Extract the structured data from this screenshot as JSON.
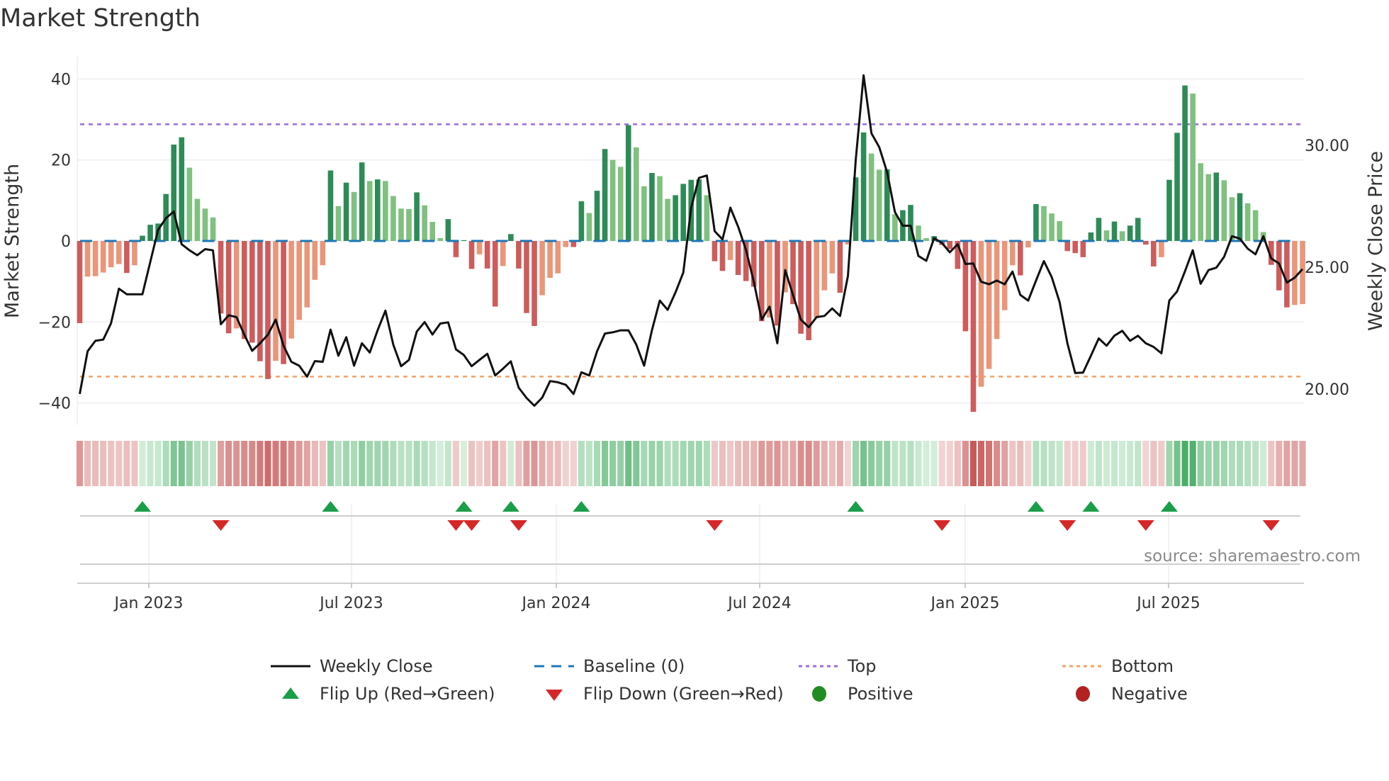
{
  "title": "Market Strength",
  "source": "source: sharemaestro.com",
  "legend": {
    "weekly_close": "Weekly Close",
    "baseline": "Baseline (0)",
    "top": "Top",
    "bottom": "Bottom",
    "flip_up": "Flip Up (Red→Green)",
    "flip_down": "Flip Down (Green→Red)",
    "positive": "Positive",
    "negative": "Negative"
  },
  "colors": {
    "pos_dark": "#2e8b57",
    "pos_light": "#80c080",
    "neg_dark": "#cd5c5c",
    "neg_light": "#e9967a",
    "baseline": "#1f77b4",
    "top": "#9b6fd6",
    "bottom": "#f0a468",
    "flip_up": "#1a9e4a",
    "flip_down": "#d62728",
    "positive": "#228b22",
    "negative": "#b22222",
    "close": "#111111"
  },
  "chart_data": {
    "type": "bar",
    "title": "Market Strength",
    "ylabel": "Market Strength",
    "ylabel_right": "Weekly Close Price",
    "ylim": [
      -45.5,
      45.5
    ],
    "ylim_right": [
      18.52,
      33.63
    ],
    "yticks": [
      "40",
      "20",
      "0",
      "−20",
      "−40"
    ],
    "yticks_values": [
      40,
      20,
      0,
      -20,
      -40
    ],
    "yticks_right": [
      "30.00",
      "25.00",
      "20.00"
    ],
    "yticks_right_values": [
      30,
      25,
      20
    ],
    "xticks": [
      "Jan 2023",
      "Jul 2023",
      "Jan 2024",
      "Jul 2024",
      "Jan 2025",
      "Jul 2025"
    ],
    "x_start": "2022-11-04",
    "x_frequency": "weekly",
    "top_level": 28.8,
    "bottom_level": -33.5,
    "baseline": 0,
    "strength": [
      -20.3,
      -8.8,
      -8.7,
      -7.8,
      -6.5,
      -5.7,
      -7.9,
      -6.0,
      1.3,
      4.0,
      4.3,
      11.6,
      23.8,
      25.6,
      18.1,
      10.4,
      8.0,
      5.8,
      -17.9,
      -22.8,
      -21.6,
      -24.2,
      -25.1,
      -29.7,
      -34.1,
      -29.6,
      -30.4,
      -24.1,
      -19.5,
      -16.4,
      -9.6,
      -6.0,
      17.4,
      8.6,
      14.4,
      12.1,
      19.4,
      14.8,
      15.2,
      14.8,
      11.1,
      8.0,
      7.9,
      12.0,
      8.8,
      4.7,
      0.7,
      5.4,
      -4.0,
      0.2,
      -6.9,
      -3.3,
      -6.8,
      -16.2,
      -6.2,
      1.7,
      -6.8,
      -17.8,
      -21.0,
      -13.4,
      -9.1,
      -8.0,
      -1.5,
      -1.5,
      9.8,
      6.9,
      12.4,
      22.7,
      20.0,
      18.3,
      28.6,
      23.1,
      13.5,
      16.8,
      16.0,
      10.4,
      11.3,
      14.1,
      15.1,
      15.2,
      11.3,
      -5.0,
      -7.4,
      -4.7,
      -8.4,
      -9.9,
      -11.3,
      -19.8,
      -18.9,
      -20.9,
      -12.7,
      -15.6,
      -22.9,
      -24.5,
      -18.9,
      -12.2,
      -8.0,
      -12.8,
      -0.9,
      15.7,
      26.8,
      21.6,
      17.6,
      17.7,
      6.6,
      7.6,
      8.9,
      3.8,
      0.7,
      1.2,
      -1.0,
      -2.0,
      -6.9,
      -22.3,
      -42.2,
      -36.0,
      -31.6,
      -24.2,
      -17.1,
      -6.0,
      -8.5,
      -1.6,
      9.1,
      8.6,
      6.8,
      4.9,
      -2.5,
      -3.0,
      -4.0,
      2.1,
      5.7,
      2.6,
      4.8,
      2.4,
      3.8,
      5.7,
      -0.9,
      -6.3,
      -4.0,
      15.1,
      26.7,
      38.4,
      36.4,
      19.2,
      16.5,
      16.9,
      15.0,
      10.8,
      11.8,
      9.3,
      7.6,
      2.2,
      -5.9,
      -12.2,
      -16.4,
      -15.8,
      -15.6
    ],
    "close": [
      19.8,
      21.55,
      21.98,
      22.03,
      22.7,
      24.12,
      23.89,
      23.89,
      23.89,
      25.21,
      26.53,
      27.01,
      27.28,
      25.94,
      25.69,
      25.49,
      25.74,
      25.69,
      22.66,
      23.03,
      22.95,
      22.23,
      21.57,
      21.88,
      22.23,
      22.85,
      21.78,
      21.12,
      20.96,
      20.51,
      21.15,
      21.12,
      22.44,
      21.37,
      22.13,
      20.96,
      21.88,
      21.5,
      22.41,
      23.22,
      21.83,
      20.94,
      21.2,
      22.36,
      22.75,
      22.24,
      22.69,
      22.74,
      21.63,
      21.4,
      20.94,
      21.2,
      21.45,
      20.56,
      20.84,
      21.14,
      20.06,
      19.64,
      19.32,
      19.65,
      20.33,
      20.28,
      20.18,
      19.8,
      20.69,
      20.56,
      21.55,
      22.28,
      22.33,
      22.41,
      22.41,
      21.83,
      20.96,
      22.41,
      23.63,
      23.25,
      23.96,
      24.78,
      27.44,
      28.66,
      28.76,
      26.48,
      26.14,
      27.44,
      26.66,
      25.71,
      24.4,
      22.85,
      23.38,
      21.88,
      24.88,
      23.86,
      22.85,
      22.54,
      22.95,
      23.0,
      23.31,
      23.0,
      24.64,
      29.39,
      32.87,
      30.49,
      29.92,
      28.89,
      27.26,
      26.7,
      26.7,
      25.46,
      25.26,
      26.19,
      25.99,
      25.61,
      25.94,
      25.13,
      25.15,
      24.4,
      24.3,
      24.45,
      24.3,
      24.82,
      23.86,
      23.63,
      24.45,
      25.25,
      24.59,
      23.58,
      21.88,
      20.66,
      20.68,
      21.37,
      22.08,
      21.78,
      22.19,
      22.39,
      21.98,
      22.19,
      21.88,
      21.73,
      21.47,
      23.63,
      24.01,
      24.83,
      25.69,
      24.32,
      24.88,
      24.98,
      25.43,
      26.27,
      26.17,
      25.76,
      25.53,
      26.27,
      25.36,
      25.15,
      24.37,
      24.57,
      24.92
    ]
  }
}
